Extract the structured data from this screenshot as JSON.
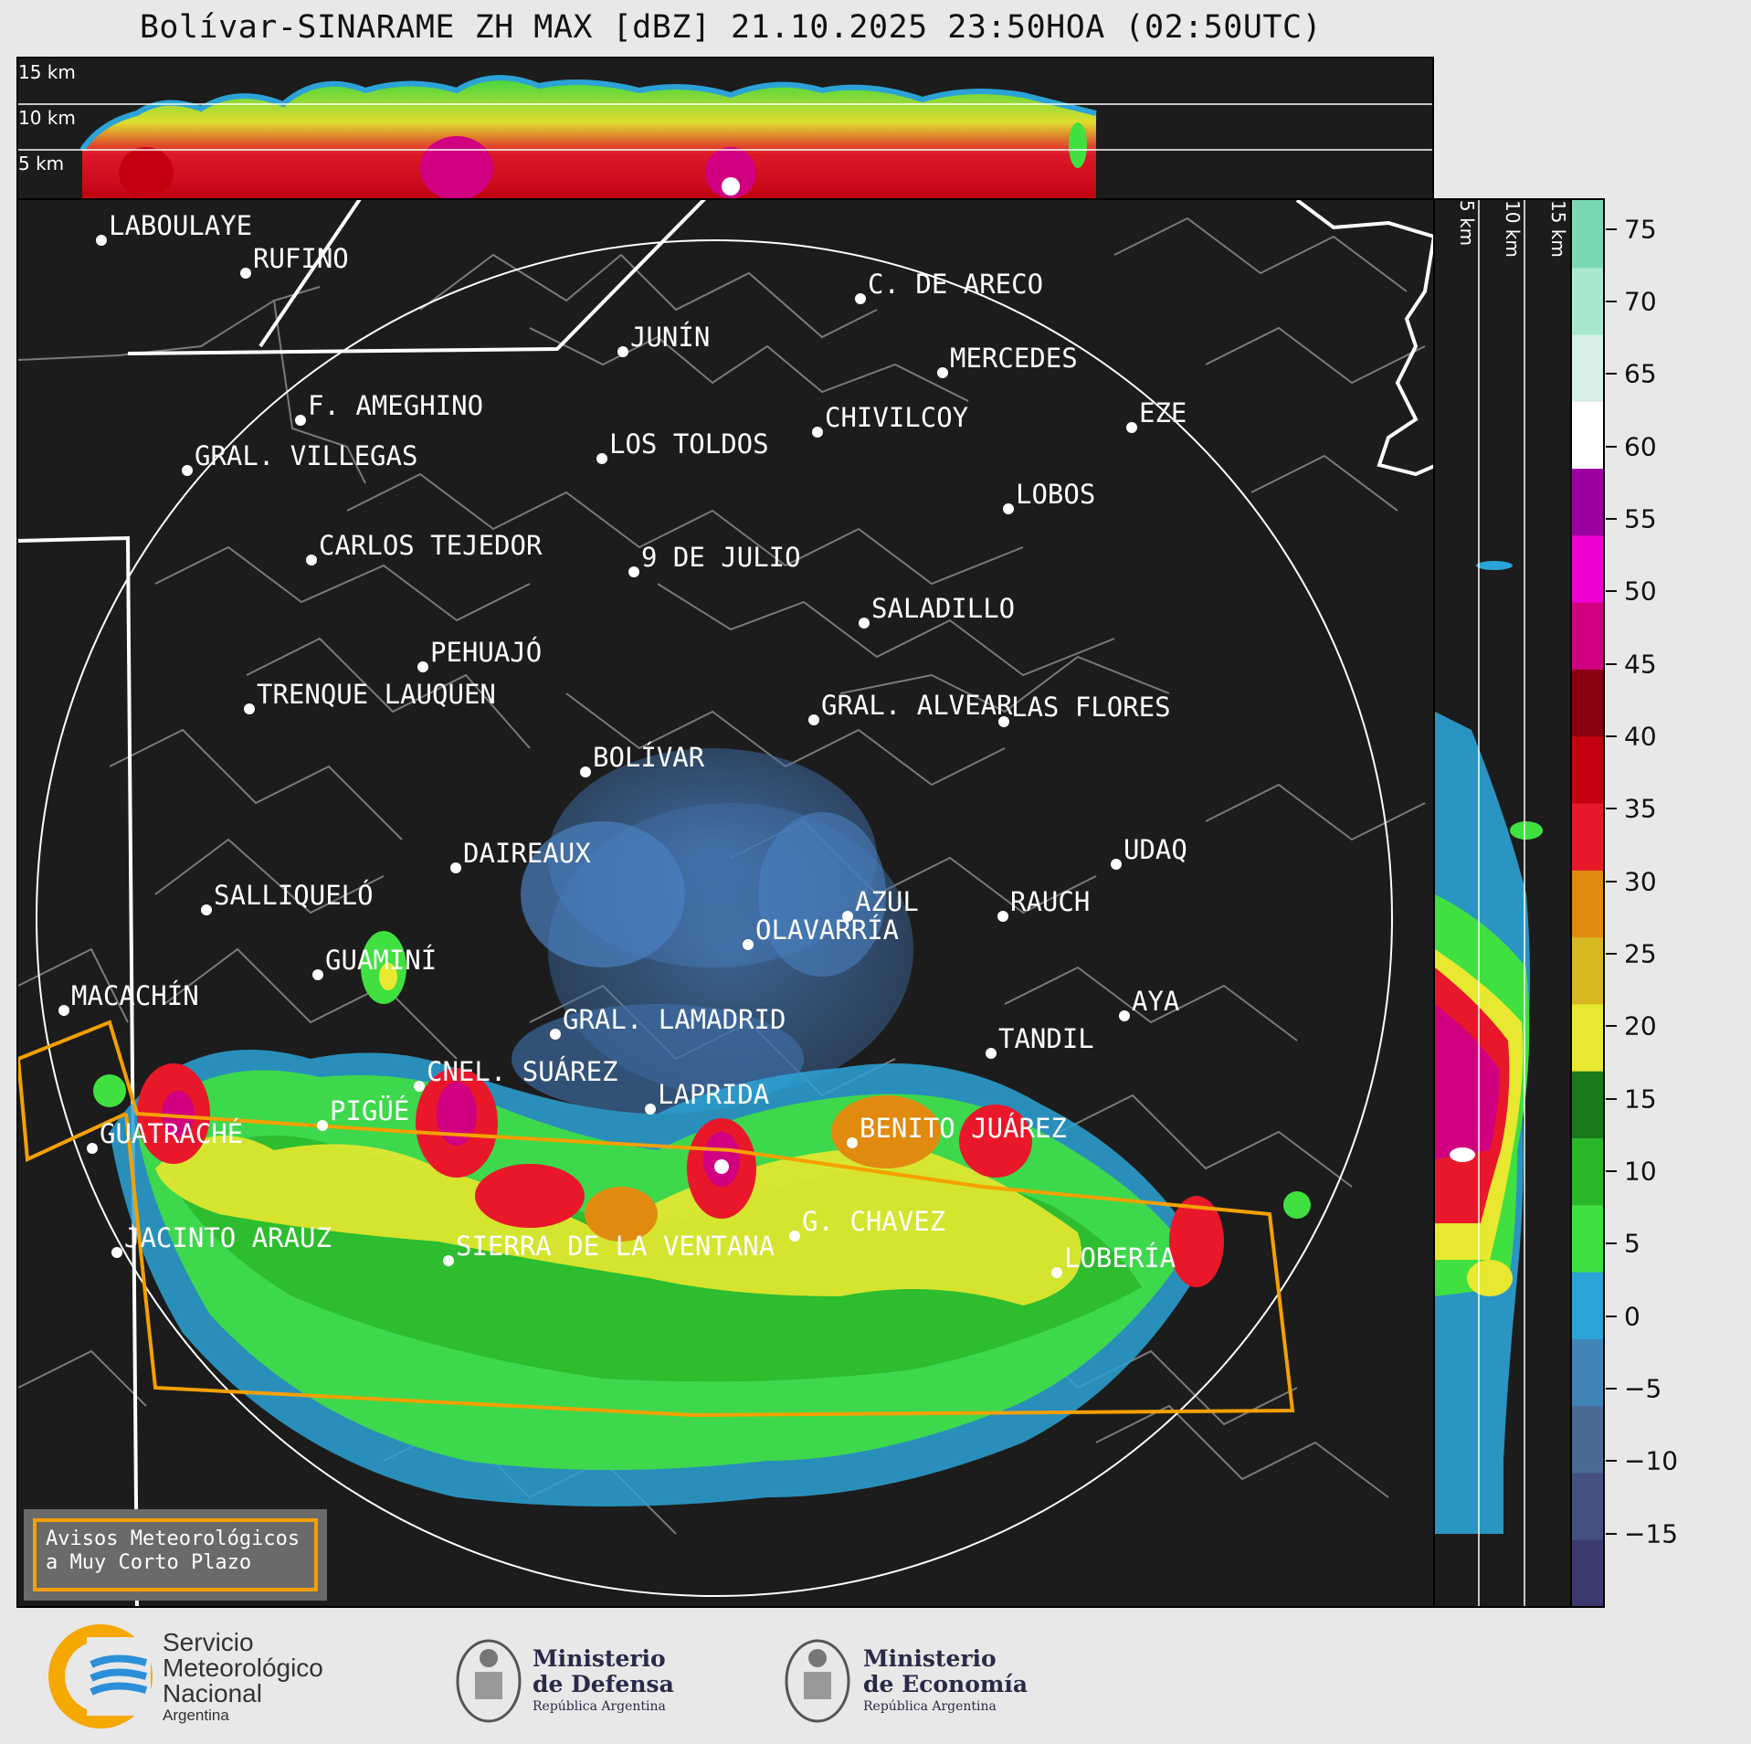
{
  "title": "Bolívar-SINARAME ZH MAX [dBZ] 21.10.2025 23:50HOA (02:50UTC)",
  "top_panel_labels": [
    "15 km",
    "10 km",
    "5 km"
  ],
  "side_panel_labels": [
    "5 km",
    "10 km",
    "15 km"
  ],
  "colorbar": {
    "ticks": [
      {
        "label": "75",
        "value": 75
      },
      {
        "label": "70",
        "value": 70
      },
      {
        "label": "65",
        "value": 65
      },
      {
        "label": "60",
        "value": 60
      },
      {
        "label": "55",
        "value": 55
      },
      {
        "label": "50",
        "value": 50
      },
      {
        "label": "45",
        "value": 45
      },
      {
        "label": "40",
        "value": 40
      },
      {
        "label": "35",
        "value": 35
      },
      {
        "label": "30",
        "value": 30
      },
      {
        "label": "25",
        "value": 25
      },
      {
        "label": "20",
        "value": 20
      },
      {
        "label": "15",
        "value": 15
      },
      {
        "label": "10",
        "value": 10
      },
      {
        "label": "5",
        "value": 5
      },
      {
        "label": "0",
        "value": 0
      },
      {
        "label": "−5",
        "value": -5
      },
      {
        "label": "−10",
        "value": -10
      },
      {
        "label": "−15",
        "value": -15
      }
    ],
    "min": -20,
    "max": 77,
    "colors": [
      "#3a3a6e",
      "#44507e",
      "#4a6a94",
      "#3f84b4",
      "#2ca3d6",
      "#40e040",
      "#2ab82a",
      "#1a7a1a",
      "#e8e830",
      "#d8b820",
      "#e08a10",
      "#e8182a",
      "#c40010",
      "#8a0010",
      "#d00080",
      "#f000d0",
      "#9a00a0",
      "#ffffff",
      "#d8f0e6",
      "#a8e8cc",
      "#7ad8b4"
    ]
  },
  "cities": [
    {
      "name": "LABOULAYE"
    },
    {
      "name": "RUFINO"
    },
    {
      "name": "C. DE ARECO"
    },
    {
      "name": "JUNÍN"
    },
    {
      "name": "MERCEDES"
    },
    {
      "name": "F. AMEGHINO"
    },
    {
      "name": "CHIVILCOY"
    },
    {
      "name": "EZE"
    },
    {
      "name": "LOS TOLDOS"
    },
    {
      "name": "GRAL. VILLEGAS"
    },
    {
      "name": "LOBOS"
    },
    {
      "name": "CARLOS TEJEDOR"
    },
    {
      "name": "9 DE JULIO"
    },
    {
      "name": "SALADILLO"
    },
    {
      "name": "PEHUAJÓ"
    },
    {
      "name": "TRENQUE LAUQUEN"
    },
    {
      "name": "GRAL. ALVEAR"
    },
    {
      "name": "LAS FLORES"
    },
    {
      "name": "BOLÍVAR"
    },
    {
      "name": "DAIREAUX"
    },
    {
      "name": "UDAQ"
    },
    {
      "name": "SALLIQUELÓ"
    },
    {
      "name": "AZUL"
    },
    {
      "name": "RAUCH"
    },
    {
      "name": "OLAVARRÍA"
    },
    {
      "name": "GUAMINÍ"
    },
    {
      "name": "MACACHÍN"
    },
    {
      "name": "AYA"
    },
    {
      "name": "GRAL. LAMADRID"
    },
    {
      "name": "TANDIL"
    },
    {
      "name": "CNEL. SUÁREZ"
    },
    {
      "name": "LAPRIDA"
    },
    {
      "name": "PIGÜÉ"
    },
    {
      "name": "GUATRACHÉ"
    },
    {
      "name": "BENITO JUÁREZ"
    },
    {
      "name": "G. CHAVEZ"
    },
    {
      "name": "JACINTO ARAUZ"
    },
    {
      "name": "SIERRA DE LA VENTANA"
    },
    {
      "name": "LOBERÍA"
    }
  ],
  "legend": {
    "line1": "Avisos Meteorológicos",
    "line2": "a Muy Corto Plazo"
  },
  "logos": {
    "smn": {
      "line1": "Servicio",
      "line2": "Meteorológico",
      "line3": "Nacional",
      "line4": "Argentina"
    },
    "defensa": {
      "line1": "Ministerio",
      "line2": "de Defensa",
      "line3": "República Argentina"
    },
    "economia": {
      "line1": "Ministerio",
      "line2": "de Economía",
      "line3": "República Argentina"
    }
  },
  "colors": {
    "warning_polygon": "#f5a000",
    "map_background": "#1c1c1c",
    "province_border": "#ffffff",
    "department_border": "#7a7a7a"
  }
}
